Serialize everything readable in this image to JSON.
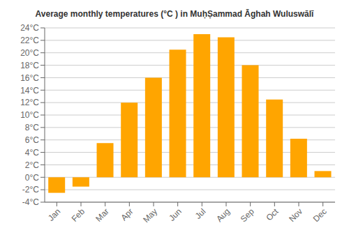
{
  "chart_data": {
    "type": "bar",
    "title": "Average monthly temperatures (°C ) in MuḥṢammad Āghah Wuluswālī",
    "categories": [
      "Jan",
      "Feb",
      "Mar",
      "Apr",
      "May",
      "Jun",
      "Jul",
      "Aug",
      "Sep",
      "Oct",
      "Nov",
      "Dec"
    ],
    "values": [
      -2.5,
      -1.5,
      5.5,
      12.0,
      16.0,
      20.5,
      23.0,
      22.5,
      18.0,
      12.5,
      6.2,
      1.0
    ],
    "color": "#FFA500",
    "ylim": [
      -4,
      24
    ],
    "yticks": [
      {
        "value": -4,
        "label": "-4°C"
      },
      {
        "value": -2,
        "label": "-2°C"
      },
      {
        "value": 0,
        "label": "0°C"
      },
      {
        "value": 2,
        "label": "2°C"
      },
      {
        "value": 4,
        "label": "4°C"
      },
      {
        "value": 6,
        "label": "6°C"
      },
      {
        "value": 8,
        "label": "8°C"
      },
      {
        "value": 10,
        "label": "10°C"
      },
      {
        "value": 12,
        "label": "12°C"
      },
      {
        "value": 14,
        "label": "14°C"
      },
      {
        "value": 16,
        "label": "16°C"
      },
      {
        "value": 18,
        "label": "18°C"
      },
      {
        "value": 20,
        "label": "20°C"
      },
      {
        "value": 22,
        "label": "22°C"
      },
      {
        "value": 24,
        "label": "24°C"
      }
    ],
    "grid": true
  }
}
